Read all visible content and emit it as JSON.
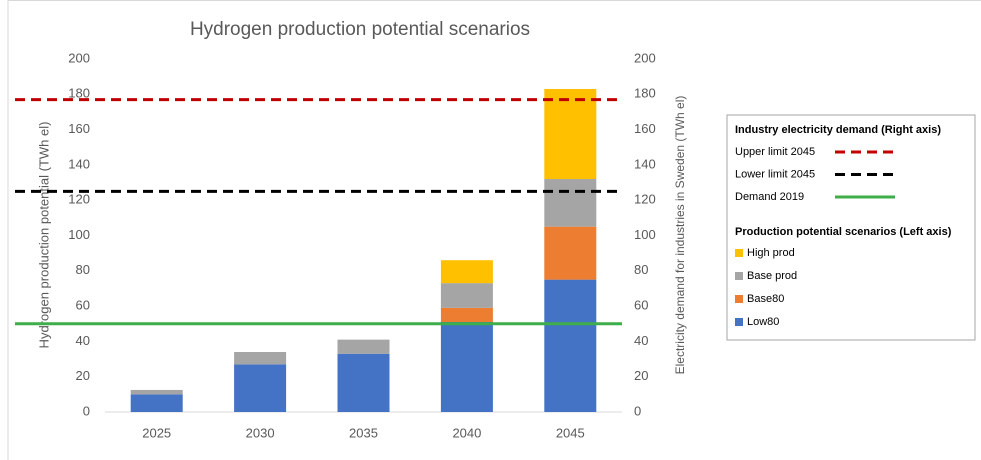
{
  "chart_data": {
    "type": "bar",
    "title": "Hydrogen production potential scenarios",
    "y_label": "Hydrogen production potential (TWh el)",
    "y2_label": "Electricity demand for industries in Sweden (TWh el)",
    "categories": [
      "2025",
      "2030",
      "2035",
      "2040",
      "2045"
    ],
    "stacked": true,
    "series": [
      {
        "name": "Low80",
        "color": "#4472c4",
        "axis": "y",
        "values": [
          10,
          27,
          33,
          51,
          75
        ]
      },
      {
        "name": "Base80",
        "color": "#ed7d31",
        "axis": "y",
        "values": [
          0,
          0,
          0,
          8,
          30
        ]
      },
      {
        "name": "Base prod",
        "color": "#a5a5a5",
        "axis": "y",
        "values": [
          2.5,
          7,
          8,
          14,
          27
        ]
      },
      {
        "name": "High prod",
        "color": "#ffc000",
        "axis": "y",
        "values": [
          0,
          0,
          0,
          13,
          51
        ]
      }
    ],
    "reference_lines": [
      {
        "name": "Upper limit 2045",
        "color": "#c00000",
        "style": "dashed",
        "axis": "y2",
        "value": 177
      },
      {
        "name": "Lower limit 2045",
        "color": "#000000",
        "style": "dashed",
        "axis": "y2",
        "value": 125
      },
      {
        "name": "Demand 2019",
        "color": "#3dae49",
        "style": "solid",
        "axis": "y2",
        "value": 50
      }
    ],
    "legend_titles": [
      "Industry electricity demand (Right axis)",
      "Production potential scenarios (Left axis)"
    ],
    "ylim": [
      0,
      200
    ],
    "yticks": [
      0,
      20,
      40,
      60,
      80,
      100,
      120,
      140,
      160,
      180,
      200
    ],
    "y2lim": [
      0,
      200
    ],
    "y2ticks": [
      0,
      20,
      40,
      60,
      80,
      100,
      120,
      140,
      160,
      180,
      200
    ],
    "legend_position": "right"
  }
}
